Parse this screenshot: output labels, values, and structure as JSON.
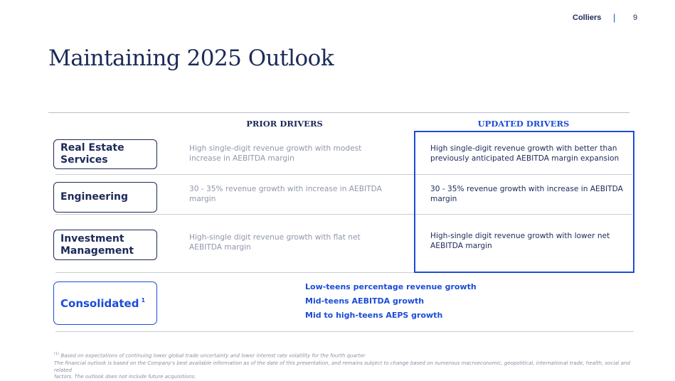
{
  "header": {
    "brand": "Colliers",
    "separator": "|",
    "page_number": "9"
  },
  "title": "Maintaining 2025 Outlook",
  "columns": {
    "prior": "PRIOR DRIVERS",
    "updated": "UPDATED DRIVERS"
  },
  "rows": [
    {
      "label_lines": [
        "Real Estate",
        "Services"
      ],
      "prior": [
        "High single-digit revenue growth with modest",
        "increase in AEBITDA margin"
      ],
      "updated": [
        "High single-digit revenue growth with better than",
        "previously anticipated AEBITDA margin expansion"
      ]
    },
    {
      "label_lines": [
        "Engineering"
      ],
      "prior": [
        "30 - 35% revenue growth with increase in AEBITDA",
        "margin"
      ],
      "updated": [
        "30 - 35% revenue growth with increase in AEBITDA",
        "margin"
      ]
    },
    {
      "label_lines": [
        "Investment",
        "Management"
      ],
      "prior": [
        "High-single digit revenue growth with flat net",
        "AEBITDA margin"
      ],
      "updated": [
        "High-single digit revenue growth with lower net",
        "AEBITDA margin"
      ]
    }
  ],
  "consolidated": {
    "label": "Consolidated",
    "footnote_marker": "1",
    "lines": [
      "Low-teens percentage revenue growth",
      "Mid-teens AEBITDA growth",
      "Mid to high-teens AEPS growth"
    ]
  },
  "footnotes": {
    "marker": "(1)",
    "note1": "Based on expectations of continuing lower global trade uncertainty and lower interest rate volatility for the fourth quarter",
    "note2_lines": [
      "The financial outlook is based on the Company's best available information as of the date of this presentation, and remains subject to change based on numerous macroeconomic, geopolitical, international trade, health, social and related",
      "factors. The outlook does not include future acquisitions."
    ]
  },
  "colors": {
    "navy": "#1c2a58",
    "accent_blue": "#1c4cd8",
    "muted_text": "#9197ad",
    "rule": "#c9ccd6"
  }
}
